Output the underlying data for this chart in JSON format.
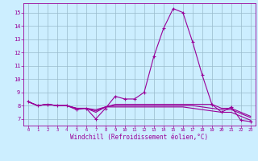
{
  "xlabel": "Windchill (Refroidissement éolien,°C)",
  "background_color": "#cceeff",
  "line_color": "#990099",
  "grid_color": "#99bbcc",
  "xlim": [
    -0.5,
    23.5
  ],
  "ylim": [
    6.5,
    15.7
  ],
  "yticks": [
    7,
    8,
    9,
    10,
    11,
    12,
    13,
    14,
    15
  ],
  "xticks": [
    0,
    1,
    2,
    3,
    4,
    5,
    6,
    7,
    8,
    9,
    10,
    11,
    12,
    13,
    14,
    15,
    16,
    17,
    18,
    19,
    20,
    21,
    22,
    23
  ],
  "series": [
    [
      8.3,
      8.0,
      8.1,
      8.0,
      8.0,
      7.7,
      7.8,
      7.0,
      7.8,
      8.7,
      8.5,
      8.5,
      9.0,
      11.7,
      13.8,
      15.3,
      15.0,
      12.8,
      10.3,
      8.1,
      7.5,
      7.9,
      6.9,
      6.8
    ],
    [
      8.3,
      8.0,
      8.1,
      8.0,
      8.0,
      7.8,
      7.8,
      7.5,
      7.9,
      8.1,
      8.1,
      8.1,
      8.1,
      8.1,
      8.1,
      8.1,
      8.1,
      8.1,
      8.1,
      8.1,
      7.8,
      7.8,
      7.5,
      7.2
    ],
    [
      8.3,
      8.0,
      8.1,
      8.0,
      8.0,
      7.8,
      7.8,
      7.6,
      7.9,
      8.0,
      8.0,
      8.0,
      8.0,
      8.0,
      8.0,
      8.0,
      8.0,
      8.0,
      7.9,
      7.8,
      7.7,
      7.7,
      7.4,
      7.1
    ],
    [
      8.3,
      8.0,
      8.1,
      8.0,
      8.0,
      7.8,
      7.8,
      7.7,
      7.9,
      7.9,
      7.9,
      7.9,
      7.9,
      7.9,
      7.9,
      7.9,
      7.9,
      7.8,
      7.7,
      7.6,
      7.5,
      7.5,
      7.2,
      6.9
    ]
  ]
}
